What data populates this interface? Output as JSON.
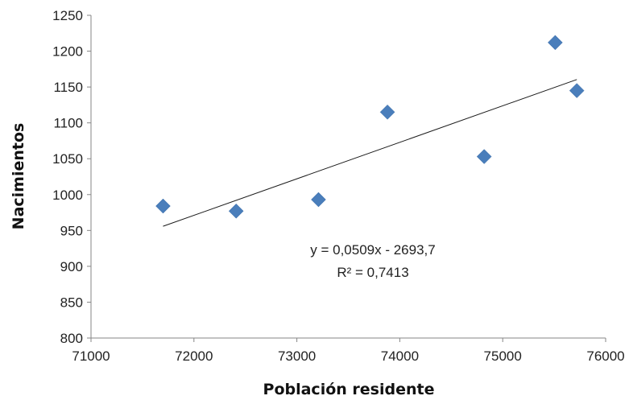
{
  "chart_data": {
    "type": "scatter",
    "title": "",
    "xlabel": "Población residente",
    "ylabel": "Nacimientos",
    "xlim": [
      71000,
      76000
    ],
    "ylim": [
      800,
      1250
    ],
    "x_ticks": [
      "71000",
      "72000",
      "73000",
      "74000",
      "75000",
      "76000"
    ],
    "y_ticks": [
      "800",
      "850",
      "900",
      "950",
      "1000",
      "1050",
      "1100",
      "1150",
      "1200",
      "1250"
    ],
    "grid": false,
    "legend": "none",
    "marker_color": "#4a7ebb",
    "series": [
      {
        "x": [
          71700,
          72410,
          73210,
          73880,
          74820,
          75510,
          75720
        ],
        "y": [
          984,
          977,
          993,
          1115,
          1053,
          1212,
          1145
        ]
      }
    ],
    "trendline": {
      "slope": 0.0509,
      "intercept": -2693.7,
      "x_range": [
        71700,
        75720
      ],
      "equation": "y = 0,0509x - 2693,7",
      "r_squared": "R² = 0,7413"
    }
  }
}
